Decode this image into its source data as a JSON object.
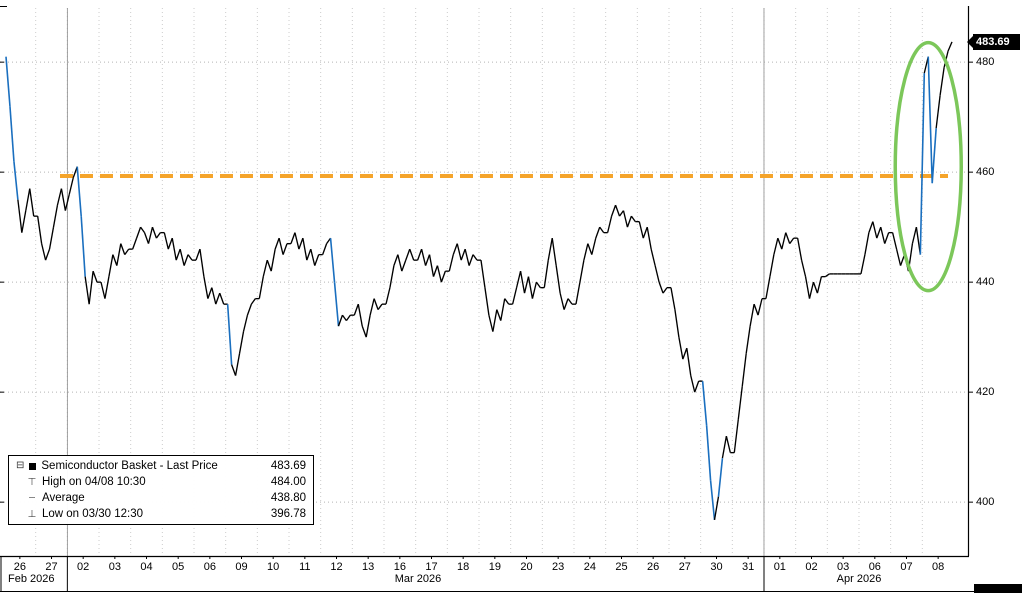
{
  "chart_data": {
    "type": "line",
    "security": "Semiconductor Basket",
    "series_name": "Semiconductor Basket - Last Price",
    "last_price": 483.69,
    "last_price_label": "483.69",
    "legend_rows": [
      {
        "icon": "series-swatch",
        "label": "Semiconductor Basket - Last Price",
        "value": "483.69"
      },
      {
        "icon": "high-marker",
        "label": "High on 04/08 10:30",
        "value": "484.00"
      },
      {
        "icon": "average-marker",
        "label": "Average",
        "value": "438.80"
      },
      {
        "icon": "low-marker",
        "label": "Low on 03/30 12:30",
        "value": "396.78"
      }
    ],
    "y_axis": {
      "ticks": [
        480,
        460,
        440,
        420,
        400
      ],
      "tick_labels": [
        "480",
        "460",
        "440",
        "420",
        "400"
      ],
      "range": [
        391,
        491
      ],
      "side": "right",
      "grid": "dotted"
    },
    "x_axis": {
      "day_labels": [
        "26",
        "27",
        "02",
        "03",
        "04",
        "05",
        "06",
        "09",
        "10",
        "11",
        "12",
        "13",
        "16",
        "17",
        "18",
        "19",
        "20",
        "23",
        "24",
        "25",
        "26",
        "27",
        "30",
        "31",
        "01",
        "02",
        "03",
        "06",
        "07",
        "08"
      ],
      "months": [
        {
          "label": "Feb 2026",
          "day_count": 2
        },
        {
          "label": "Mar 2026",
          "day_count": 22
        },
        {
          "label": "Apr 2026",
          "day_count": 6
        }
      ],
      "month_boundary_days": [
        2,
        24
      ]
    },
    "reference_line": {
      "value": 459.3,
      "color": "#f5a42a",
      "style": "dashed"
    },
    "annotation_ellipse": {
      "color": "#7cc75a",
      "center_value": 461
    },
    "points_per_day": 8,
    "points": [
      481,
      472,
      462,
      455,
      449,
      453,
      457,
      452,
      452,
      447,
      444,
      446,
      450,
      454,
      457,
      453,
      456,
      459,
      461,
      452,
      441,
      436,
      442,
      440,
      440,
      437,
      441,
      445,
      443,
      447,
      445,
      446,
      446,
      448,
      450,
      449,
      447,
      450,
      448,
      449,
      449,
      446,
      448,
      444,
      446,
      443,
      445,
      444,
      444,
      446,
      441,
      437,
      439,
      436,
      438,
      436,
      436,
      425,
      423,
      427,
      431,
      434,
      436,
      437,
      437,
      441,
      444,
      442,
      446,
      448,
      445,
      447,
      447,
      449,
      446,
      448,
      444,
      446,
      443,
      445,
      445,
      447,
      448,
      440,
      432,
      434,
      433,
      434,
      434,
      436,
      432,
      430,
      434,
      437,
      435,
      436,
      436,
      439,
      443,
      445,
      442,
      444,
      446,
      444,
      444,
      446,
      443,
      445,
      441,
      443,
      440,
      442,
      442,
      445,
      447,
      444,
      446,
      443,
      445,
      444,
      444,
      439,
      434,
      431,
      435,
      433,
      437,
      436,
      436,
      439,
      442,
      438,
      441,
      437,
      440,
      439,
      439,
      444,
      448,
      443,
      438,
      435,
      437,
      436,
      436,
      440,
      444,
      447,
      445,
      448,
      450,
      449,
      449,
      452,
      454,
      452,
      453,
      450,
      452,
      451,
      451,
      448,
      450,
      446,
      443,
      440,
      438,
      439,
      439,
      435,
      430,
      426,
      428,
      423,
      420,
      422,
      422,
      414,
      404,
      396.78,
      401,
      408,
      412,
      409,
      409,
      415,
      421,
      427,
      432,
      436,
      434,
      437,
      437,
      441,
      445,
      448,
      446,
      449,
      447,
      448,
      448,
      444,
      441,
      437,
      440,
      438,
      441,
      441,
      441.5,
      441.5,
      441.5,
      441.5,
      441.5,
      441.5,
      441.5,
      441.5,
      441.5,
      445,
      449,
      451,
      448,
      450,
      447,
      449,
      449,
      446,
      443,
      445,
      442,
      447,
      450,
      445,
      478,
      481,
      458,
      468,
      474,
      479,
      482,
      483.69
    ],
    "colors": {
      "series": "#000000",
      "drop_segment": "#1a6fbf",
      "grid": "#b5b5b5",
      "axis": "#000000",
      "background": "#ffffff",
      "badge_bg": "#000000",
      "badge_text": "#ffffff"
    }
  }
}
